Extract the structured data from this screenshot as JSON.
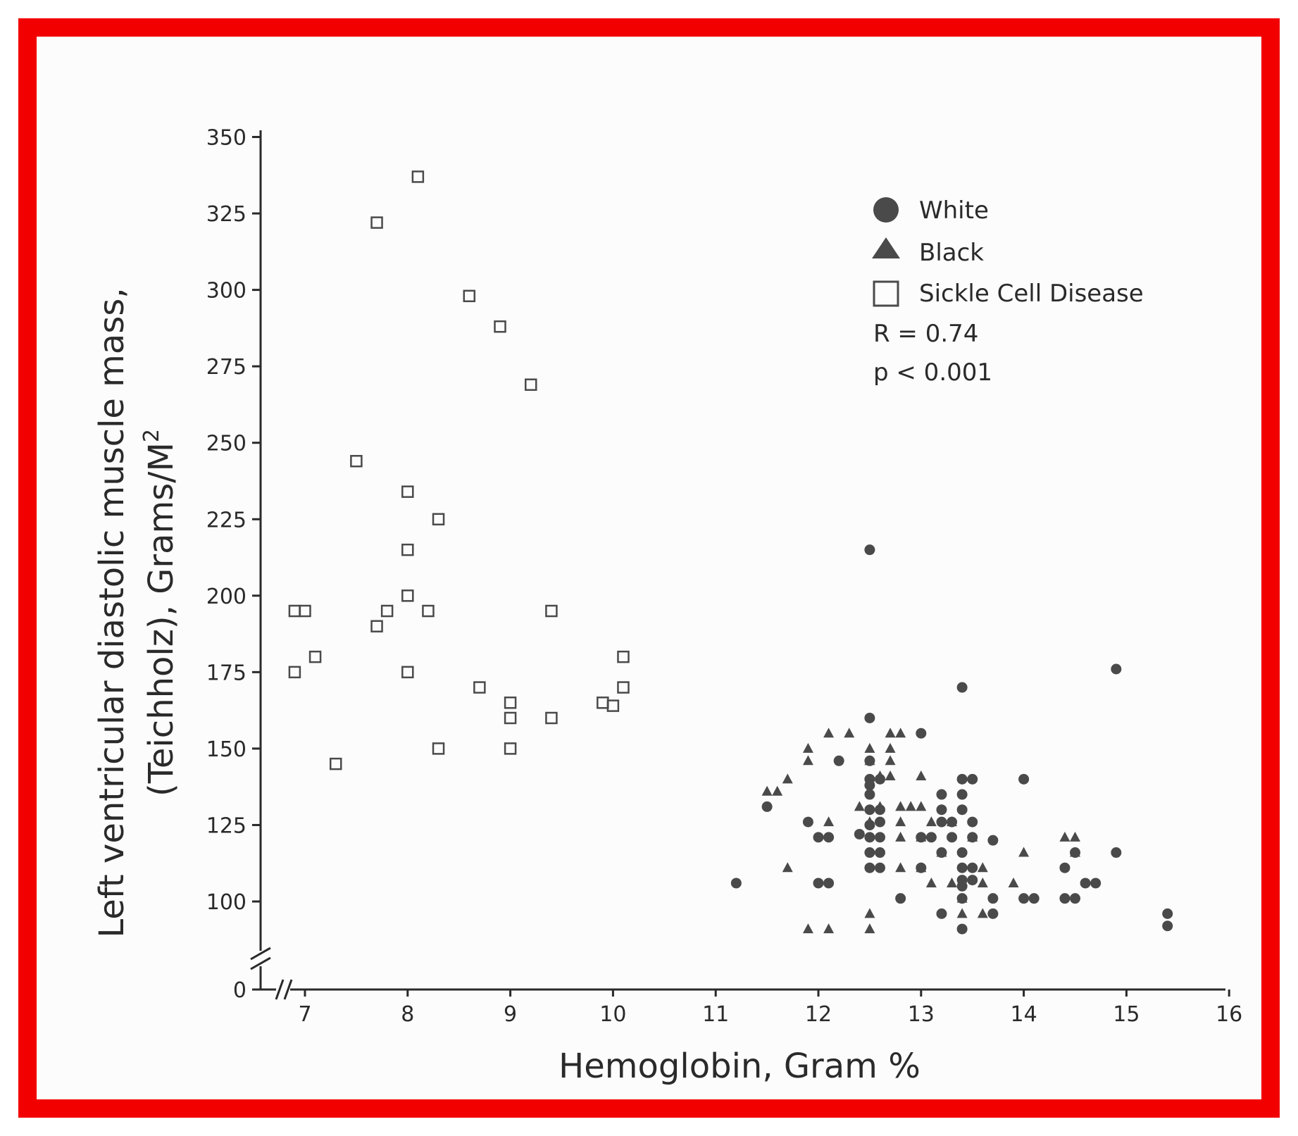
{
  "chart_data": {
    "type": "scatter",
    "title": "",
    "xlabel": "Hemoglobin, Gram %",
    "ylabel_line1": "Left ventricular diastolic muscle mass,",
    "ylabel_line2": "(Teichholz), Grams/M",
    "ylabel_sup": "2",
    "xlim": [
      6.6,
      16
    ],
    "ylim": [
      0,
      350
    ],
    "y_axis_break": true,
    "x_axis_break": true,
    "x_ticks": [
      "7",
      "8",
      "9",
      "10",
      "11",
      "12",
      "13",
      "14",
      "15",
      "16"
    ],
    "y_ticks": [
      "0",
      "100",
      "125",
      "150",
      "175",
      "200",
      "225",
      "250",
      "275",
      "300",
      "325",
      "350"
    ],
    "legend_position": "top-right",
    "colors": {
      "frame": "#f20000",
      "marker": "#4a4a4a",
      "axis": "#2a2a2a"
    },
    "annotations": {
      "r": "R = 0.74",
      "p": "p < 0.001"
    },
    "series": [
      {
        "name": "White",
        "marker": "circle",
        "points": [
          [
            12.5,
            215
          ],
          [
            14.9,
            176
          ],
          [
            13.4,
            170
          ],
          [
            12.5,
            160
          ],
          [
            13.0,
            155
          ],
          [
            12.2,
            146
          ],
          [
            12.5,
            146
          ],
          [
            12.5,
            140
          ],
          [
            12.5,
            138
          ],
          [
            12.6,
            140
          ],
          [
            13.4,
            140
          ],
          [
            13.5,
            140
          ],
          [
            14.0,
            140
          ],
          [
            12.5,
            135
          ],
          [
            13.2,
            135
          ],
          [
            13.4,
            135
          ],
          [
            11.5,
            131
          ],
          [
            12.5,
            130
          ],
          [
            12.6,
            130
          ],
          [
            13.2,
            130
          ],
          [
            13.4,
            130
          ],
          [
            11.9,
            126
          ],
          [
            12.5,
            125
          ],
          [
            12.6,
            126
          ],
          [
            13.2,
            126
          ],
          [
            13.3,
            126
          ],
          [
            13.5,
            126
          ],
          [
            12.4,
            122
          ],
          [
            12.5,
            121
          ],
          [
            12.6,
            121
          ],
          [
            13.0,
            121
          ],
          [
            13.1,
            121
          ],
          [
            13.3,
            121
          ],
          [
            13.5,
            121
          ],
          [
            12.0,
            121
          ],
          [
            12.1,
            121
          ],
          [
            13.7,
            120
          ],
          [
            12.5,
            116
          ],
          [
            12.6,
            116
          ],
          [
            13.2,
            116
          ],
          [
            13.4,
            116
          ],
          [
            14.5,
            116
          ],
          [
            14.9,
            116
          ],
          [
            12.5,
            111
          ],
          [
            12.6,
            111
          ],
          [
            13.0,
            111
          ],
          [
            13.4,
            111
          ],
          [
            13.5,
            111
          ],
          [
            14.4,
            111
          ],
          [
            13.4,
            107
          ],
          [
            13.5,
            107
          ],
          [
            11.2,
            106
          ],
          [
            12.0,
            106
          ],
          [
            12.1,
            106
          ],
          [
            13.4,
            105
          ],
          [
            14.6,
            106
          ],
          [
            14.7,
            106
          ],
          [
            12.8,
            101
          ],
          [
            13.4,
            101
          ],
          [
            13.7,
            101
          ],
          [
            14.0,
            101
          ],
          [
            14.1,
            101
          ],
          [
            14.4,
            101
          ],
          [
            14.5,
            101
          ],
          [
            13.2,
            96
          ],
          [
            13.7,
            96
          ],
          [
            15.4,
            96
          ],
          [
            13.4,
            91
          ],
          [
            15.4,
            92
          ]
        ]
      },
      {
        "name": "Black",
        "marker": "triangle",
        "points": [
          [
            11.9,
            150
          ],
          [
            12.1,
            155
          ],
          [
            12.3,
            155
          ],
          [
            12.5,
            150
          ],
          [
            12.7,
            155
          ],
          [
            12.8,
            155
          ],
          [
            12.5,
            146
          ],
          [
            12.7,
            146
          ],
          [
            11.9,
            146
          ],
          [
            12.7,
            150
          ],
          [
            11.5,
            136
          ],
          [
            11.6,
            136
          ],
          [
            11.7,
            140
          ],
          [
            12.6,
            141
          ],
          [
            12.7,
            141
          ],
          [
            13.0,
            141
          ],
          [
            12.4,
            131
          ],
          [
            12.6,
            131
          ],
          [
            12.8,
            131
          ],
          [
            12.9,
            131
          ],
          [
            13.0,
            131
          ],
          [
            12.5,
            126
          ],
          [
            12.8,
            126
          ],
          [
            13.1,
            126
          ],
          [
            13.3,
            126
          ],
          [
            12.1,
            126
          ],
          [
            12.8,
            121
          ],
          [
            13.0,
            121
          ],
          [
            13.5,
            121
          ],
          [
            14.4,
            121
          ],
          [
            14.5,
            121
          ],
          [
            13.2,
            116
          ],
          [
            14.0,
            116
          ],
          [
            14.5,
            116
          ],
          [
            11.7,
            111
          ],
          [
            12.8,
            111
          ],
          [
            13.0,
            111
          ],
          [
            13.6,
            111
          ],
          [
            13.1,
            106
          ],
          [
            13.3,
            106
          ],
          [
            13.6,
            106
          ],
          [
            13.9,
            106
          ],
          [
            13.4,
            101
          ],
          [
            13.4,
            96
          ],
          [
            13.6,
            96
          ],
          [
            12.5,
            96
          ],
          [
            11.9,
            91
          ],
          [
            12.1,
            91
          ],
          [
            12.5,
            91
          ]
        ]
      },
      {
        "name": "Sickle Cell Disease",
        "marker": "square",
        "points": [
          [
            8.1,
            337
          ],
          [
            7.7,
            322
          ],
          [
            8.6,
            298
          ],
          [
            8.9,
            288
          ],
          [
            9.2,
            269
          ],
          [
            7.5,
            244
          ],
          [
            8.0,
            234
          ],
          [
            8.3,
            225
          ],
          [
            8.0,
            215
          ],
          [
            6.9,
            195
          ],
          [
            7.0,
            195
          ],
          [
            7.8,
            195
          ],
          [
            8.2,
            195
          ],
          [
            9.4,
            195
          ],
          [
            8.0,
            200
          ],
          [
            7.7,
            190
          ],
          [
            7.1,
            180
          ],
          [
            10.1,
            180
          ],
          [
            6.9,
            175
          ],
          [
            8.0,
            175
          ],
          [
            8.7,
            170
          ],
          [
            10.1,
            170
          ],
          [
            9.0,
            165
          ],
          [
            9.9,
            165
          ],
          [
            10.0,
            164
          ],
          [
            9.0,
            160
          ],
          [
            9.4,
            160
          ],
          [
            7.3,
            145
          ],
          [
            8.3,
            150
          ],
          [
            9.0,
            150
          ]
        ]
      }
    ]
  }
}
